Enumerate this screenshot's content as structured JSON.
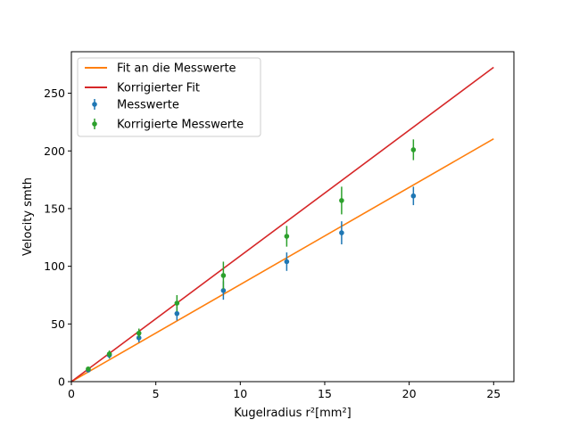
{
  "chart_data": {
    "type": "scatter",
    "xlabel": "Kugelradius r²[mm²]",
    "ylabel": "Velocity smth",
    "xlim": [
      0,
      26.2
    ],
    "ylim": [
      0,
      286
    ],
    "xticks": [
      0,
      5,
      10,
      15,
      20,
      25
    ],
    "yticks": [
      0,
      50,
      100,
      150,
      200,
      250
    ],
    "grid": false,
    "legend_position": "top-left",
    "lines": [
      {
        "name": "Fit an die Messwerte",
        "color": "#ff7f0e",
        "x": [
          0,
          25
        ],
        "y": [
          0,
          210.5
        ]
      },
      {
        "name": "Korrigierter Fit",
        "color": "#d62728",
        "x": [
          0,
          25
        ],
        "y": [
          0,
          272.5
        ]
      }
    ],
    "series": [
      {
        "name": "Messwerte",
        "color": "#1f77b4",
        "x": [
          1.0,
          2.25,
          4.0,
          6.25,
          9.0,
          12.75,
          16.0,
          20.25
        ],
        "y": [
          10,
          23,
          38,
          59,
          79,
          104,
          129,
          161
        ],
        "yerr": [
          1.5,
          3,
          4,
          6,
          8,
          8,
          10,
          8
        ]
      },
      {
        "name": "Korrigierte Messwerte",
        "color": "#2ca02c",
        "x": [
          1.0,
          2.25,
          4.0,
          6.25,
          9.0,
          12.75,
          16.0,
          20.25
        ],
        "y": [
          11,
          24,
          42,
          68,
          92,
          126,
          157,
          201
        ],
        "yerr": [
          1.5,
          3,
          4,
          7,
          12,
          9,
          12,
          9
        ]
      }
    ]
  }
}
